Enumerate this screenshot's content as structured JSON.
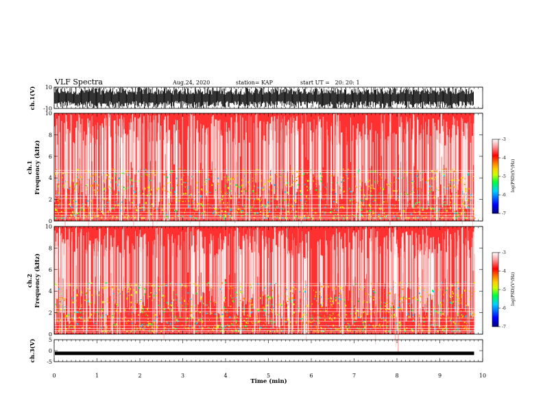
{
  "header": {
    "title": "VLF Spectra",
    "date": "Aug.24, 2020",
    "station": "station= KAP",
    "start_ut": "start UT =   20: 20: 1"
  },
  "colors": {
    "spectrum_scale": [
      "#00007a",
      "#0000ff",
      "#00d0ff",
      "#00ff40",
      "#c8ff00",
      "#ffd000",
      "#ff7a00",
      "#ff0000",
      "#ff9a9a",
      "#ffffff"
    ]
  },
  "chart_data": [
    {
      "type": "line",
      "panel": "ch1-waveform",
      "ylabel": "ch.1(V)",
      "ylim": [
        -10,
        10
      ],
      "ytick_labels": [
        "10",
        "-10"
      ],
      "xlim": [
        0,
        10
      ],
      "description_of_trace": "dense saturated VLF waveform spanning about -10 to 10 V from 0 to ~9.8 min"
    },
    {
      "type": "heatmap",
      "panel": "ch1-spectrogram",
      "ylabel": "ch.1\nFrequency (kHz)",
      "ylabel_line1": "ch.1",
      "ylabel_line2": "Frequency (kHz)",
      "ylim": [
        0,
        10
      ],
      "ytick_labels": [
        "0",
        "2",
        "4",
        "6",
        "8",
        "10"
      ],
      "xlim": [
        0,
        10
      ],
      "data_end_min": 9.8,
      "colorbar": {
        "label": "log(PSD)(V²/Hz)",
        "range": [
          -7,
          -3
        ],
        "tick_labels": [
          "-3",
          "-4",
          "-5",
          "-6",
          "-7"
        ]
      }
    },
    {
      "type": "heatmap",
      "panel": "ch2-spectrogram",
      "ylabel": "ch.2\nFrequency (kHz)",
      "ylabel_line1": "ch.2",
      "ylabel_line2": "Frequency (kHz)",
      "ylim": [
        0,
        10
      ],
      "ytick_labels": [
        "0",
        "2",
        "4",
        "6",
        "8",
        "10"
      ],
      "xlim": [
        0,
        10
      ],
      "data_end_min": 9.8,
      "colorbar": {
        "label": "log(PSD)(V²/Hz)",
        "range": [
          -7,
          -3
        ],
        "tick_labels": [
          "-3",
          "-4",
          "-5",
          "-6",
          "-7"
        ]
      }
    },
    {
      "type": "line",
      "panel": "ch3-waveform",
      "ylabel": "ch.3(V)",
      "ylim": [
        -5,
        5
      ],
      "ytick_labels": [
        "5",
        "0",
        "-5"
      ],
      "xlim": [
        0,
        10
      ],
      "xlabel": "Time (min)",
      "xtick_labels": [
        "0",
        "1",
        "2",
        "3",
        "4",
        "5",
        "6",
        "7",
        "8",
        "9",
        "10"
      ],
      "approx_level_v": -1.2
    }
  ]
}
